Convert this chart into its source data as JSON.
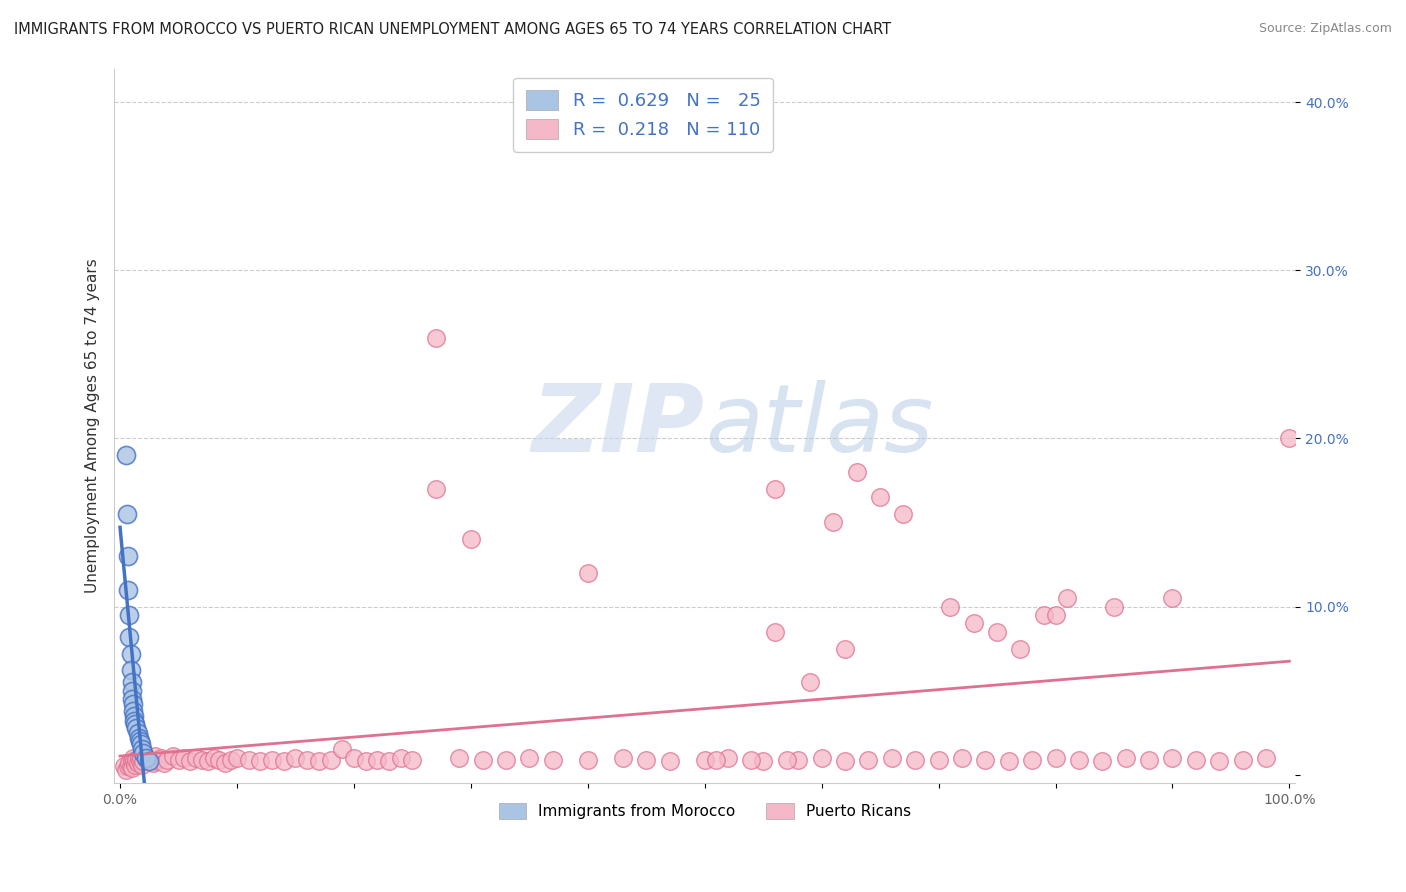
{
  "title": "IMMIGRANTS FROM MOROCCO VS PUERTO RICAN UNEMPLOYMENT AMONG AGES 65 TO 74 YEARS CORRELATION CHART",
  "source": "Source: ZipAtlas.com",
  "ylabel": "Unemployment Among Ages 65 to 74 years",
  "xlim": [
    -0.005,
    1.005
  ],
  "ylim": [
    -0.005,
    0.42
  ],
  "xticks": [
    0.0,
    0.1,
    0.2,
    0.3,
    0.4,
    0.5,
    0.6,
    0.7,
    0.8,
    0.9,
    1.0
  ],
  "xticklabels": [
    "0.0%",
    "",
    "",
    "",
    "",
    "",
    "",
    "",
    "",
    "",
    "100.0%"
  ],
  "yticks": [
    0.0,
    0.1,
    0.2,
    0.3,
    0.4
  ],
  "yticklabels": [
    "",
    "10.0%",
    "20.0%",
    "30.0%",
    "40.0%"
  ],
  "legend_R1": "0.629",
  "legend_N1": "25",
  "legend_R2": "0.218",
  "legend_N2": "110",
  "blue_color": "#aac4e4",
  "pink_color": "#f5b8c8",
  "blue_line_color": "#4472c4",
  "pink_line_color": "#e07090",
  "watermark_zip": "ZIP",
  "watermark_atlas": "atlas",
  "blue_scatter_x": [
    0.005,
    0.006,
    0.007,
    0.007,
    0.008,
    0.008,
    0.009,
    0.009,
    0.01,
    0.01,
    0.01,
    0.011,
    0.011,
    0.012,
    0.012,
    0.013,
    0.014,
    0.015,
    0.016,
    0.017,
    0.018,
    0.019,
    0.02,
    0.022,
    0.025
  ],
  "blue_scatter_y": [
    0.19,
    0.155,
    0.13,
    0.11,
    0.095,
    0.082,
    0.072,
    0.062,
    0.055,
    0.05,
    0.045,
    0.042,
    0.038,
    0.035,
    0.032,
    0.03,
    0.028,
    0.025,
    0.022,
    0.02,
    0.018,
    0.015,
    0.013,
    0.01,
    0.008
  ],
  "pink_scatter_x": [
    0.003,
    0.005,
    0.007,
    0.008,
    0.009,
    0.01,
    0.01,
    0.011,
    0.012,
    0.013,
    0.014,
    0.015,
    0.016,
    0.017,
    0.018,
    0.019,
    0.02,
    0.022,
    0.025,
    0.028,
    0.03,
    0.032,
    0.035,
    0.038,
    0.04,
    0.045,
    0.05,
    0.055,
    0.06,
    0.065,
    0.07,
    0.075,
    0.08,
    0.085,
    0.09,
    0.095,
    0.1,
    0.11,
    0.12,
    0.13,
    0.14,
    0.15,
    0.16,
    0.17,
    0.18,
    0.19,
    0.2,
    0.21,
    0.22,
    0.23,
    0.24,
    0.25,
    0.27,
    0.29,
    0.31,
    0.33,
    0.35,
    0.37,
    0.4,
    0.43,
    0.45,
    0.47,
    0.5,
    0.52,
    0.55,
    0.58,
    0.6,
    0.62,
    0.64,
    0.66,
    0.68,
    0.7,
    0.72,
    0.74,
    0.76,
    0.78,
    0.8,
    0.82,
    0.84,
    0.86,
    0.88,
    0.9,
    0.92,
    0.94,
    0.96,
    0.98,
    1.0,
    0.51,
    0.54,
    0.57,
    0.61,
    0.63,
    0.65,
    0.67,
    0.71,
    0.73,
    0.75,
    0.77,
    0.79,
    0.81,
    0.27,
    0.3,
    0.4,
    0.56,
    0.59,
    0.56,
    0.62,
    0.8,
    0.85,
    0.9
  ],
  "pink_scatter_y": [
    0.005,
    0.003,
    0.005,
    0.007,
    0.005,
    0.008,
    0.004,
    0.01,
    0.008,
    0.006,
    0.009,
    0.007,
    0.01,
    0.008,
    0.01,
    0.006,
    0.008,
    0.01,
    0.009,
    0.007,
    0.011,
    0.008,
    0.01,
    0.007,
    0.009,
    0.011,
    0.009,
    0.01,
    0.008,
    0.01,
    0.009,
    0.008,
    0.01,
    0.009,
    0.007,
    0.009,
    0.01,
    0.009,
    0.008,
    0.009,
    0.008,
    0.01,
    0.009,
    0.008,
    0.009,
    0.015,
    0.01,
    0.008,
    0.009,
    0.008,
    0.01,
    0.009,
    0.17,
    0.01,
    0.009,
    0.009,
    0.01,
    0.009,
    0.009,
    0.01,
    0.009,
    0.008,
    0.009,
    0.01,
    0.008,
    0.009,
    0.01,
    0.008,
    0.009,
    0.01,
    0.009,
    0.009,
    0.01,
    0.009,
    0.008,
    0.009,
    0.01,
    0.009,
    0.008,
    0.01,
    0.009,
    0.01,
    0.009,
    0.008,
    0.009,
    0.01,
    0.2,
    0.009,
    0.009,
    0.009,
    0.15,
    0.18,
    0.165,
    0.155,
    0.1,
    0.09,
    0.085,
    0.075,
    0.095,
    0.105,
    0.26,
    0.14,
    0.12,
    0.17,
    0.055,
    0.085,
    0.075,
    0.095,
    0.1,
    0.105
  ]
}
